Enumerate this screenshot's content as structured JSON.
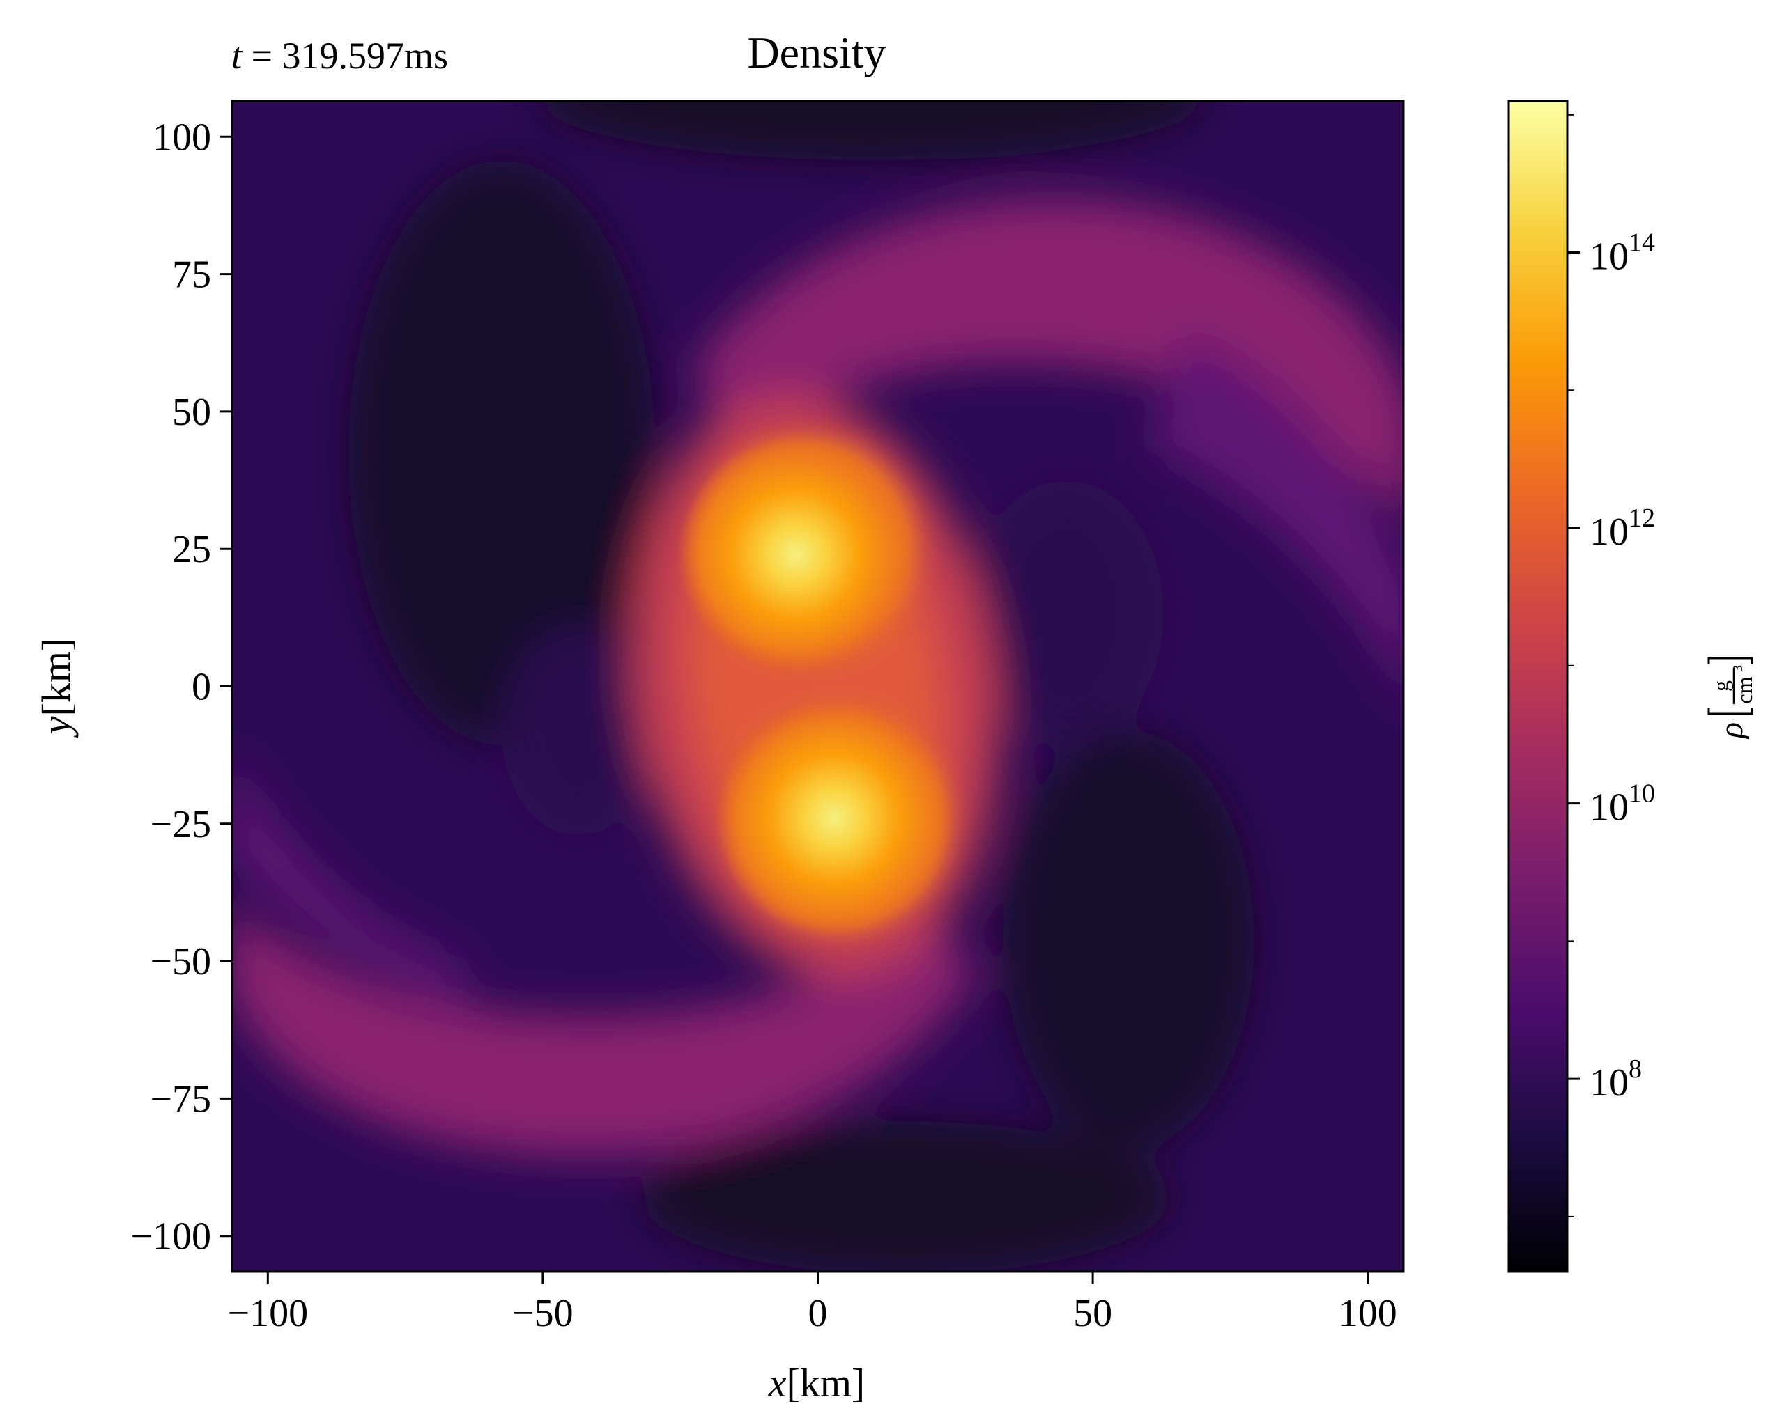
{
  "chart_data": {
    "type": "heatmap",
    "title": "Density",
    "time_label": {
      "var": "t",
      "eq": " = ",
      "value": "319.597",
      "unit": "ms"
    },
    "xlabel": {
      "var": "x",
      "unit": "[km]"
    },
    "ylabel": {
      "var": "y",
      "unit": "[km]"
    },
    "xlim": [
      -106.5,
      106.5
    ],
    "ylim": [
      -106.5,
      106.5
    ],
    "xticks": [
      {
        "value": -100,
        "label": "−100"
      },
      {
        "value": -50,
        "label": "−50"
      },
      {
        "value": 0,
        "label": "0"
      },
      {
        "value": 50,
        "label": "50"
      },
      {
        "value": 100,
        "label": "100"
      }
    ],
    "yticks": [
      {
        "value": 100,
        "label": "100"
      },
      {
        "value": 75,
        "label": "75"
      },
      {
        "value": 50,
        "label": "50"
      },
      {
        "value": 25,
        "label": "25"
      },
      {
        "value": 0,
        "label": "0"
      },
      {
        "value": -25,
        "label": "−25"
      },
      {
        "value": -50,
        "label": "−50"
      },
      {
        "value": -75,
        "label": "−75"
      },
      {
        "value": -100,
        "label": "−100"
      }
    ],
    "colormap": "inferno",
    "colorbar": {
      "scale": "log",
      "log10_range": [
        6.6,
        15.1
      ],
      "label": {
        "var": "ρ",
        "num": "g",
        "den": "cm",
        "den_exp": "3"
      },
      "ticks": [
        {
          "base": "10",
          "exp": "14",
          "log10": 14
        },
        {
          "base": "10",
          "exp": "12",
          "log10": 12
        },
        {
          "base": "10",
          "exp": "10",
          "log10": 10
        },
        {
          "base": "10",
          "exp": "8",
          "log10": 8
        }
      ],
      "minor_log10": [
        7,
        9,
        11,
        13,
        15
      ],
      "stops": [
        "#000004",
        "#1b0c41",
        "#4a0c6b",
        "#781c6d",
        "#a52c60",
        "#cf4446",
        "#ed6925",
        "#fb9b06",
        "#f7d13d",
        "#fcffa4"
      ]
    },
    "features": [
      {
        "name": "upper-core",
        "x": -4,
        "y": 24,
        "peak_log10": 15.0
      },
      {
        "name": "lower-core",
        "x": 3,
        "y": -24,
        "peak_log10": 15.0
      }
    ]
  }
}
